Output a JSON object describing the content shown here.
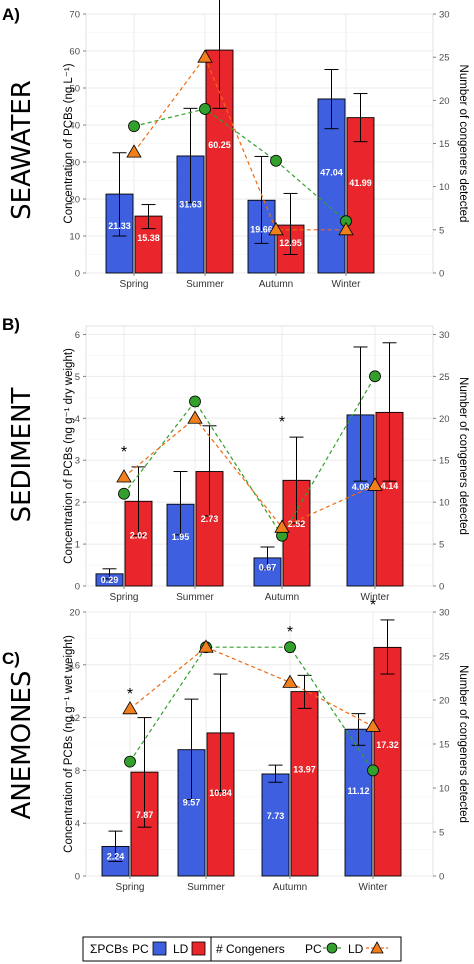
{
  "colors": {
    "pc": "#3d5fe0",
    "ld": "#e8262b",
    "pc_line": "#33a02c",
    "ld_line": "#f06a12",
    "circle_fill": "#33a02c",
    "triangle_fill": "#f07f1c",
    "grid": "#ebebeb",
    "panel_bg": "#ffffff"
  },
  "legend": {
    "pcbs_label": "ΣPCBs",
    "pc_label": "PC",
    "ld_label": "LD",
    "congeners_label": "# Congeners",
    "pc_label_2": "PC",
    "ld_label_2": "LD",
    "circle_icon": "circle-marker",
    "triangle_icon": "triangle-marker"
  },
  "chart_data": [
    {
      "type": "bar",
      "panel": "A)",
      "side_label": "SEAWATER",
      "ylabel": "Concentration of PCBs (ng L⁻¹)",
      "y2label": "Number of congeners detected",
      "categories": [
        "Spring",
        "Summer",
        "Autumn",
        "Winter"
      ],
      "ylim": [
        0,
        70
      ],
      "yticks": [
        0,
        10,
        20,
        30,
        40,
        50,
        60,
        70
      ],
      "y2lim": [
        0,
        30
      ],
      "y2ticks": [
        0,
        5,
        10,
        15,
        20,
        25,
        30
      ],
      "series": [
        {
          "name": "PC",
          "values": [
            21.33,
            31.63,
            19.66,
            47.04
          ],
          "labels": [
            "21.33",
            "31.63",
            "19.66",
            "47.04"
          ],
          "error_low": [
            10,
            19,
            8,
            39
          ],
          "error_high": [
            32.5,
            44.5,
            31.5,
            55
          ]
        },
        {
          "name": "LD",
          "values": [
            15.38,
            60.25,
            12.95,
            41.99
          ],
          "labels": [
            "15.38",
            "60.25",
            "12.95",
            "41.99"
          ],
          "error_low": [
            12,
            44.5,
            5,
            35.5
          ],
          "error_high": [
            18.5,
            76,
            21.5,
            48.5
          ]
        }
      ],
      "congeners": [
        {
          "name": "PC",
          "values": [
            17,
            19,
            13,
            6
          ]
        },
        {
          "name": "LD",
          "values": [
            14,
            25,
            5,
            5
          ]
        }
      ],
      "annotations": [
        "",
        "",
        "",
        ""
      ]
    },
    {
      "type": "bar",
      "panel": "B)",
      "side_label": "SEDIMENT",
      "ylabel": "Concentration of PCBs (ng g⁻¹ dry weight)",
      "y2label": "Number of congeners detected",
      "categories": [
        "Spring",
        "Summer",
        "Autumn",
        "Winter"
      ],
      "ylim": [
        0,
        6.2
      ],
      "yticks": [
        0,
        1,
        2,
        3,
        4,
        5,
        6
      ],
      "y2lim": [
        0,
        31
      ],
      "y2ticks": [
        0,
        5,
        10,
        15,
        20,
        25,
        30
      ],
      "series": [
        {
          "name": "PC",
          "values": [
            0.29,
            1.95,
            0.67,
            4.08
          ],
          "labels": [
            "0.29",
            "1.95",
            "0.67",
            "4.08"
          ],
          "error_low": [
            0.17,
            1.22,
            0.4,
            2.5
          ],
          "error_high": [
            0.41,
            2.73,
            0.93,
            5.7
          ]
        },
        {
          "name": "LD",
          "values": [
            2.02,
            2.73,
            2.52,
            4.14
          ],
          "labels": [
            "2.02",
            "2.73",
            "2.52",
            "4.14"
          ],
          "error_low": [
            1.2,
            1.67,
            1.5,
            2.5
          ],
          "error_high": [
            2.84,
            3.82,
            3.55,
            5.8
          ]
        }
      ],
      "congeners": [
        {
          "name": "PC",
          "values": [
            11,
            22,
            6,
            25
          ]
        },
        {
          "name": "LD",
          "values": [
            13,
            20,
            7,
            12
          ]
        }
      ],
      "annotations": [
        "*",
        "",
        "*",
        ""
      ]
    },
    {
      "type": "bar",
      "panel": "C)",
      "side_label": "ANEMONES",
      "ylabel": "Concentration of PCBs (ng g⁻¹ wet weight)",
      "y2label": "Number of congeners detected",
      "categories": [
        "Spring",
        "Summer",
        "Autumn",
        "Winter"
      ],
      "ylim": [
        0,
        20
      ],
      "yticks": [
        0,
        4,
        8,
        12,
        16,
        20
      ],
      "y2lim": [
        0,
        30
      ],
      "y2ticks": [
        0,
        5,
        10,
        15,
        20,
        25,
        30
      ],
      "series": [
        {
          "name": "PC",
          "values": [
            2.24,
            9.57,
            7.73,
            11.12
          ],
          "labels": [
            "2.24",
            "9.57",
            "7.73",
            "11.12"
          ],
          "error_low": [
            1.1,
            5.8,
            7.1,
            9.9
          ],
          "error_high": [
            3.4,
            13.4,
            8.4,
            12.3
          ]
        },
        {
          "name": "LD",
          "values": [
            7.87,
            10.84,
            13.97,
            17.32
          ],
          "labels": [
            "7.87",
            "10.84",
            "13.97",
            "17.32"
          ],
          "error_low": [
            3.7,
            6.4,
            12.7,
            15.3
          ],
          "error_high": [
            12,
            15.3,
            15.2,
            19.4
          ]
        }
      ],
      "congeners": [
        {
          "name": "PC",
          "values": [
            13,
            26,
            26,
            12
          ]
        },
        {
          "name": "LD",
          "values": [
            19,
            26,
            22,
            17
          ]
        }
      ],
      "annotations": [
        "*",
        "",
        "*",
        "*"
      ]
    }
  ]
}
